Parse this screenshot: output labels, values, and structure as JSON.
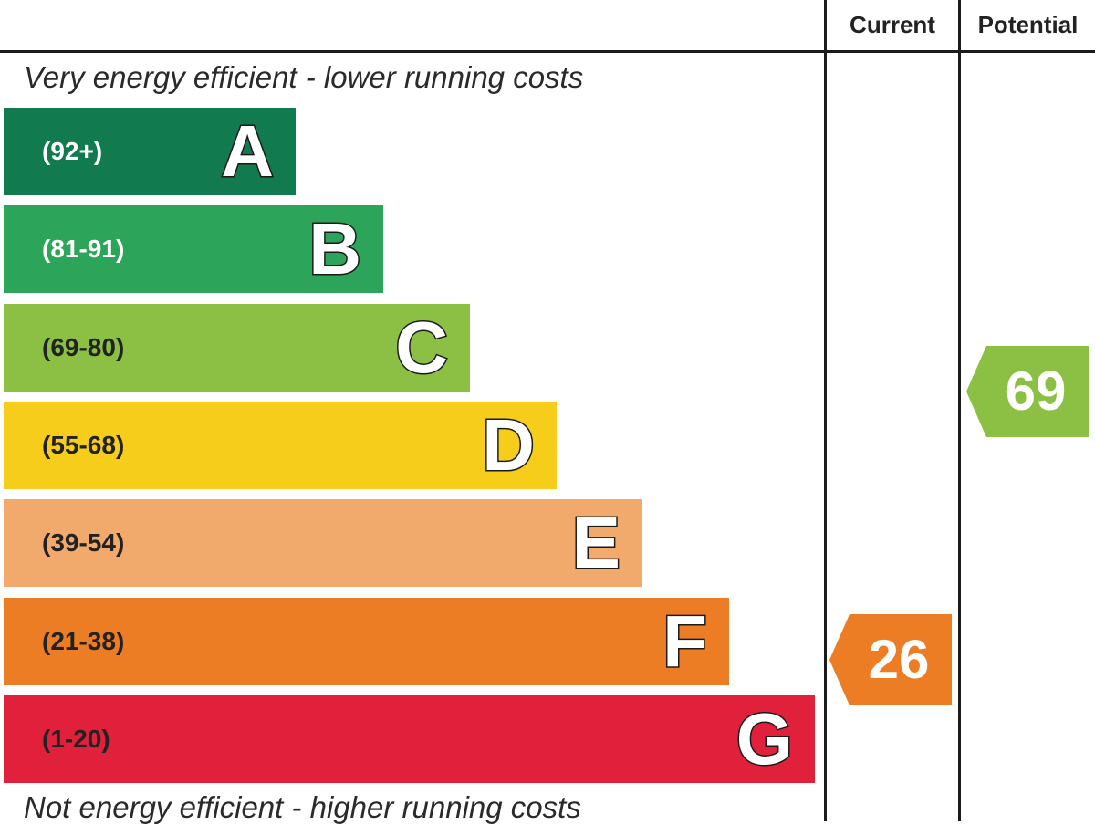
{
  "header": {
    "current_label": "Current",
    "potential_label": "Potential"
  },
  "captions": {
    "top": "Very energy efficient - lower running costs",
    "bottom": "Not energy efficient - higher running costs"
  },
  "chart_data": {
    "type": "bar",
    "categories": [
      "A",
      "B",
      "C",
      "D",
      "E",
      "F",
      "G"
    ],
    "ranges": [
      "(92+)",
      "(81-91)",
      "(69-80)",
      "(55-68)",
      "(39-54)",
      "(21-38)",
      "(1-20)"
    ],
    "colors": [
      "#127a4f",
      "#2ca55a",
      "#8cc045",
      "#f6cd1b",
      "#f2a96c",
      "#ec7d24",
      "#e1213b"
    ],
    "range_text_colors": [
      "#ffffff",
      "#ffffff",
      "#222222",
      "#222222",
      "#222222",
      "#222222",
      "#222222"
    ],
    "current": {
      "value": 26,
      "band": "F",
      "color": "#ec7d24"
    },
    "potential": {
      "value": 69,
      "band": "C",
      "color": "#8cc045"
    }
  }
}
